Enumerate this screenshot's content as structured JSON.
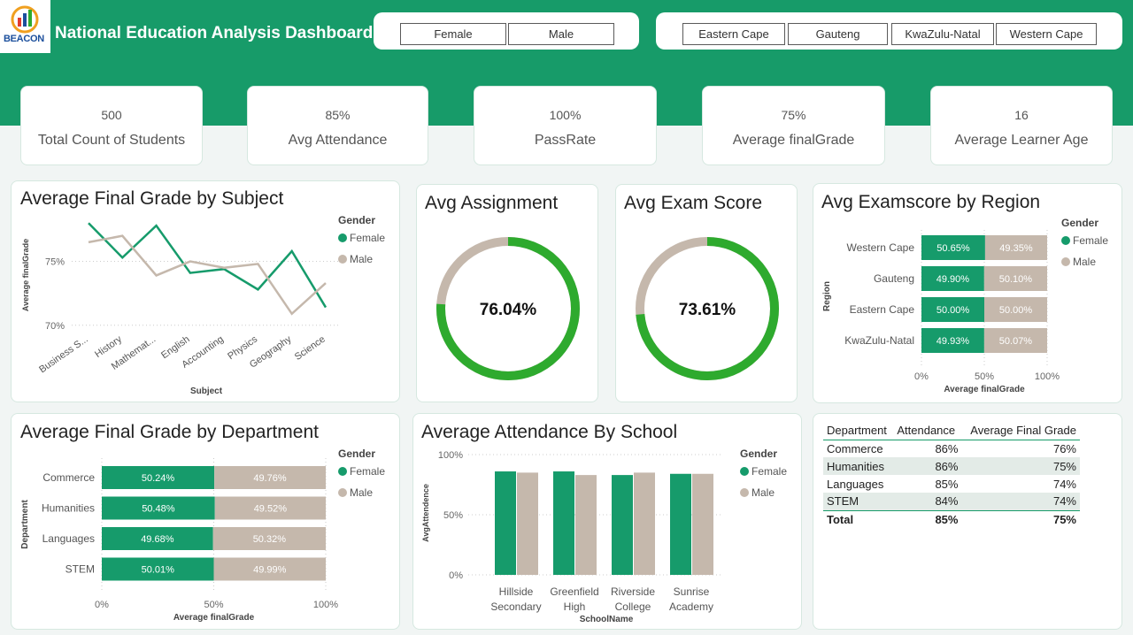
{
  "header": {
    "title": "National Education Analysis Dashboard",
    "logo_text": "BEACON"
  },
  "colors": {
    "header": "#179b69",
    "female": "#169b6b",
    "male": "#c5b8ac",
    "gauge_fill": "#2eaa2e",
    "gauge_track": "#c5b8ac"
  },
  "slicers": {
    "gender": [
      "Female",
      "Male"
    ],
    "region": [
      "Eastern Cape",
      "Gauteng",
      "KwaZulu-Natal",
      "Western Cape"
    ]
  },
  "kpis": [
    {
      "value": "500",
      "label": "Total Count of Students"
    },
    {
      "value": "85%",
      "label": "Avg Attendance"
    },
    {
      "value": "100%",
      "label": "PassRate"
    },
    {
      "value": "75%",
      "label": "Average finalGrade"
    },
    {
      "value": "16",
      "label": "Average Learner Age"
    }
  ],
  "chart_data": [
    {
      "type": "line",
      "title": "Average Final Grade by Subject",
      "xlabel": "Subject",
      "ylabel": "Average finalGrade",
      "legend_title": "Gender",
      "legend_position": "top-right",
      "categories": [
        "Business S...",
        "History",
        "Mathemat...",
        "English",
        "Accounting",
        "Physics",
        "Geography",
        "Science"
      ],
      "yticks": [
        "70%",
        "75%"
      ],
      "ylim": [
        69.5,
        78.5
      ],
      "series": [
        {
          "name": "Female",
          "values": [
            78.0,
            75.3,
            77.8,
            74.1,
            74.4,
            72.8,
            75.8,
            71.4
          ]
        },
        {
          "name": "Male",
          "values": [
            76.5,
            77.0,
            73.9,
            75.0,
            74.5,
            74.8,
            70.9,
            73.3
          ]
        }
      ]
    },
    {
      "type": "pie",
      "title": "Avg Assignment",
      "label": "76.04%",
      "value": 76.04
    },
    {
      "type": "pie",
      "title": "Avg Exam Score",
      "label": "73.61%",
      "value": 73.61
    },
    {
      "type": "bar",
      "orientation": "horizontal",
      "stacked": "100%",
      "title": "Avg Examscore by Region",
      "xlabel": "Average finalGrade",
      "ylabel": "Region",
      "legend_title": "Gender",
      "legend_position": "top-right",
      "categories": [
        "Western Cape",
        "Gauteng",
        "Eastern Cape",
        "KwaZulu-Natal"
      ],
      "xticks": [
        "0%",
        "50%",
        "100%"
      ],
      "series": [
        {
          "name": "Female",
          "values": [
            50.65,
            49.9,
            50.0,
            49.93
          ],
          "labels": [
            "50.65%",
            "49.90%",
            "50.00%",
            "49.93%"
          ]
        },
        {
          "name": "Male",
          "values": [
            49.35,
            50.1,
            50.0,
            50.07
          ],
          "labels": [
            "49.35%",
            "50.10%",
            "50.00%",
            "50.07%"
          ]
        }
      ]
    },
    {
      "type": "bar",
      "orientation": "horizontal",
      "stacked": "100%",
      "title": "Average Final Grade by Department",
      "xlabel": "Average finalGrade",
      "ylabel": "Department",
      "legend_title": "Gender",
      "legend_position": "top-right",
      "categories": [
        "Commerce",
        "Humanities",
        "Languages",
        "STEM"
      ],
      "xticks": [
        "0%",
        "50%",
        "100%"
      ],
      "series": [
        {
          "name": "Female",
          "values": [
            50.24,
            50.48,
            49.68,
            50.01
          ],
          "labels": [
            "50.24%",
            "50.48%",
            "49.68%",
            "50.01%"
          ]
        },
        {
          "name": "Male",
          "values": [
            49.76,
            49.52,
            50.32,
            49.99
          ],
          "labels": [
            "49.76%",
            "49.52%",
            "50.32%",
            "49.99%"
          ]
        }
      ]
    },
    {
      "type": "bar",
      "orientation": "vertical",
      "title": "Average Attendance By School",
      "xlabel": "SchoolName",
      "ylabel": "AvgAttendence",
      "legend_title": "Gender",
      "legend_position": "top-right",
      "categories": [
        [
          "Hillside",
          "Secondary"
        ],
        [
          "Greenfield",
          "High"
        ],
        [
          "Riverside",
          "College"
        ],
        [
          "Sunrise",
          "Academy"
        ]
      ],
      "yticks": [
        "0%",
        "50%",
        "100%"
      ],
      "ylim": [
        0,
        100
      ],
      "series": [
        {
          "name": "Female",
          "values": [
            86,
            86,
            83,
            84
          ]
        },
        {
          "name": "Male",
          "values": [
            85,
            83,
            85,
            84
          ]
        }
      ]
    },
    {
      "type": "table",
      "columns": [
        "Department",
        "Attendance",
        "Average Final Grade"
      ],
      "rows": [
        [
          "Commerce",
          "86%",
          "76%"
        ],
        [
          "Humanities",
          "86%",
          "75%"
        ],
        [
          "Languages",
          "85%",
          "74%"
        ],
        [
          "STEM",
          "84%",
          "74%"
        ]
      ],
      "total": [
        "Total",
        "85%",
        "75%"
      ]
    }
  ]
}
